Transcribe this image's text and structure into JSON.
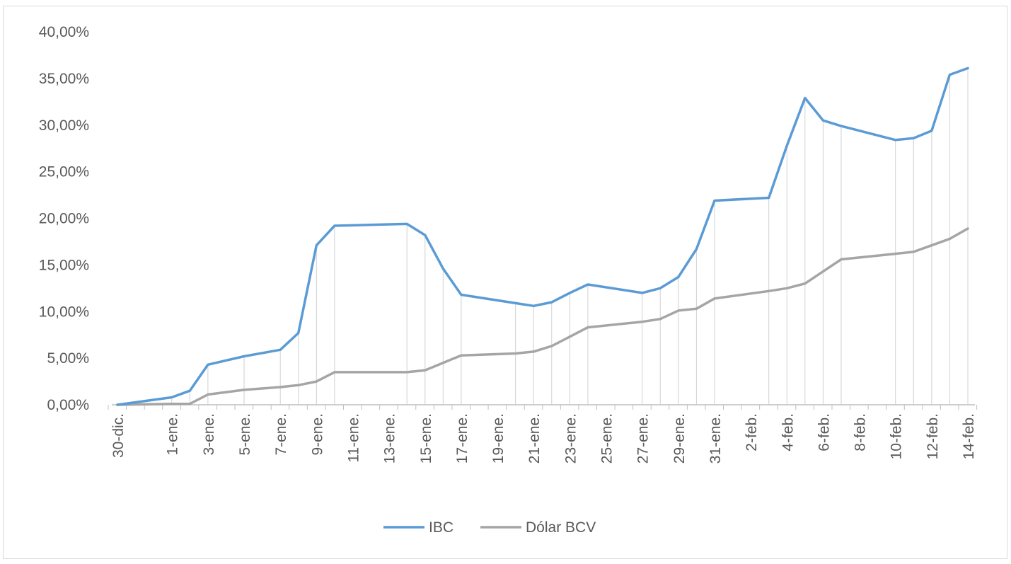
{
  "chart_data": {
    "type": "line",
    "title": "",
    "xlabel": "",
    "ylabel": "",
    "ylim": [
      0,
      40
    ],
    "y_ticks": [
      "0,00%",
      "5,00%",
      "10,00%",
      "15,00%",
      "20,00%",
      "25,00%",
      "30,00%",
      "35,00%",
      "40,00%"
    ],
    "grid": "drop lines at each data point",
    "legend_position": "bottom",
    "x_tick_labels": [
      "30-dic.",
      "1-ene.",
      "3-ene.",
      "5-ene.",
      "7-ene.",
      "9-ene.",
      "11-ene.",
      "13-ene.",
      "15-ene.",
      "17-ene.",
      "19-ene.",
      "21-ene.",
      "23-ene.",
      "25-ene.",
      "27-ene.",
      "29-ene.",
      "31-ene.",
      "2-feb.",
      "4-feb.",
      "6-feb.",
      "8-feb.",
      "10-feb.",
      "12-feb.",
      "14-feb."
    ],
    "x": [
      "30-dic.",
      "1-ene.",
      "2-ene.",
      "3-ene.",
      "5-ene.",
      "7-ene.",
      "8-ene.",
      "9-ene.",
      "10-ene.",
      "14-ene.",
      "15-ene.",
      "16-ene.",
      "17-ene.",
      "20-ene.",
      "21-ene.",
      "22-ene.",
      "23-ene.",
      "24-ene.",
      "27-ene.",
      "28-ene.",
      "29-ene.",
      "30-ene.",
      "31-ene.",
      "3-feb.",
      "4-feb.",
      "5-feb.",
      "6-feb.",
      "7-feb.",
      "10-feb.",
      "11-feb.",
      "12-feb.",
      "13-feb.",
      "14-feb."
    ],
    "series": [
      {
        "name": "IBC",
        "color": "#5b9bd5",
        "values": [
          0.0,
          0.8,
          1.5,
          4.3,
          5.2,
          5.9,
          7.7,
          17.1,
          19.2,
          19.4,
          18.2,
          14.6,
          11.8,
          10.9,
          10.6,
          11.0,
          12.0,
          12.9,
          12.0,
          12.5,
          13.7,
          16.7,
          21.9,
          22.2,
          27.8,
          32.9,
          30.5,
          29.9,
          28.4,
          28.6,
          29.4,
          35.4,
          36.1
        ]
      },
      {
        "name": "Dólar BCV",
        "color": "#a5a5a5",
        "values": [
          0.0,
          0.1,
          0.1,
          1.1,
          1.6,
          1.9,
          2.1,
          2.5,
          3.5,
          3.5,
          3.7,
          4.5,
          5.3,
          5.5,
          5.7,
          6.3,
          7.3,
          8.3,
          8.9,
          9.2,
          10.1,
          10.3,
          11.4,
          12.2,
          12.5,
          13.0,
          14.3,
          15.6,
          16.2,
          16.4,
          17.1,
          17.8,
          18.9
        ]
      }
    ]
  }
}
